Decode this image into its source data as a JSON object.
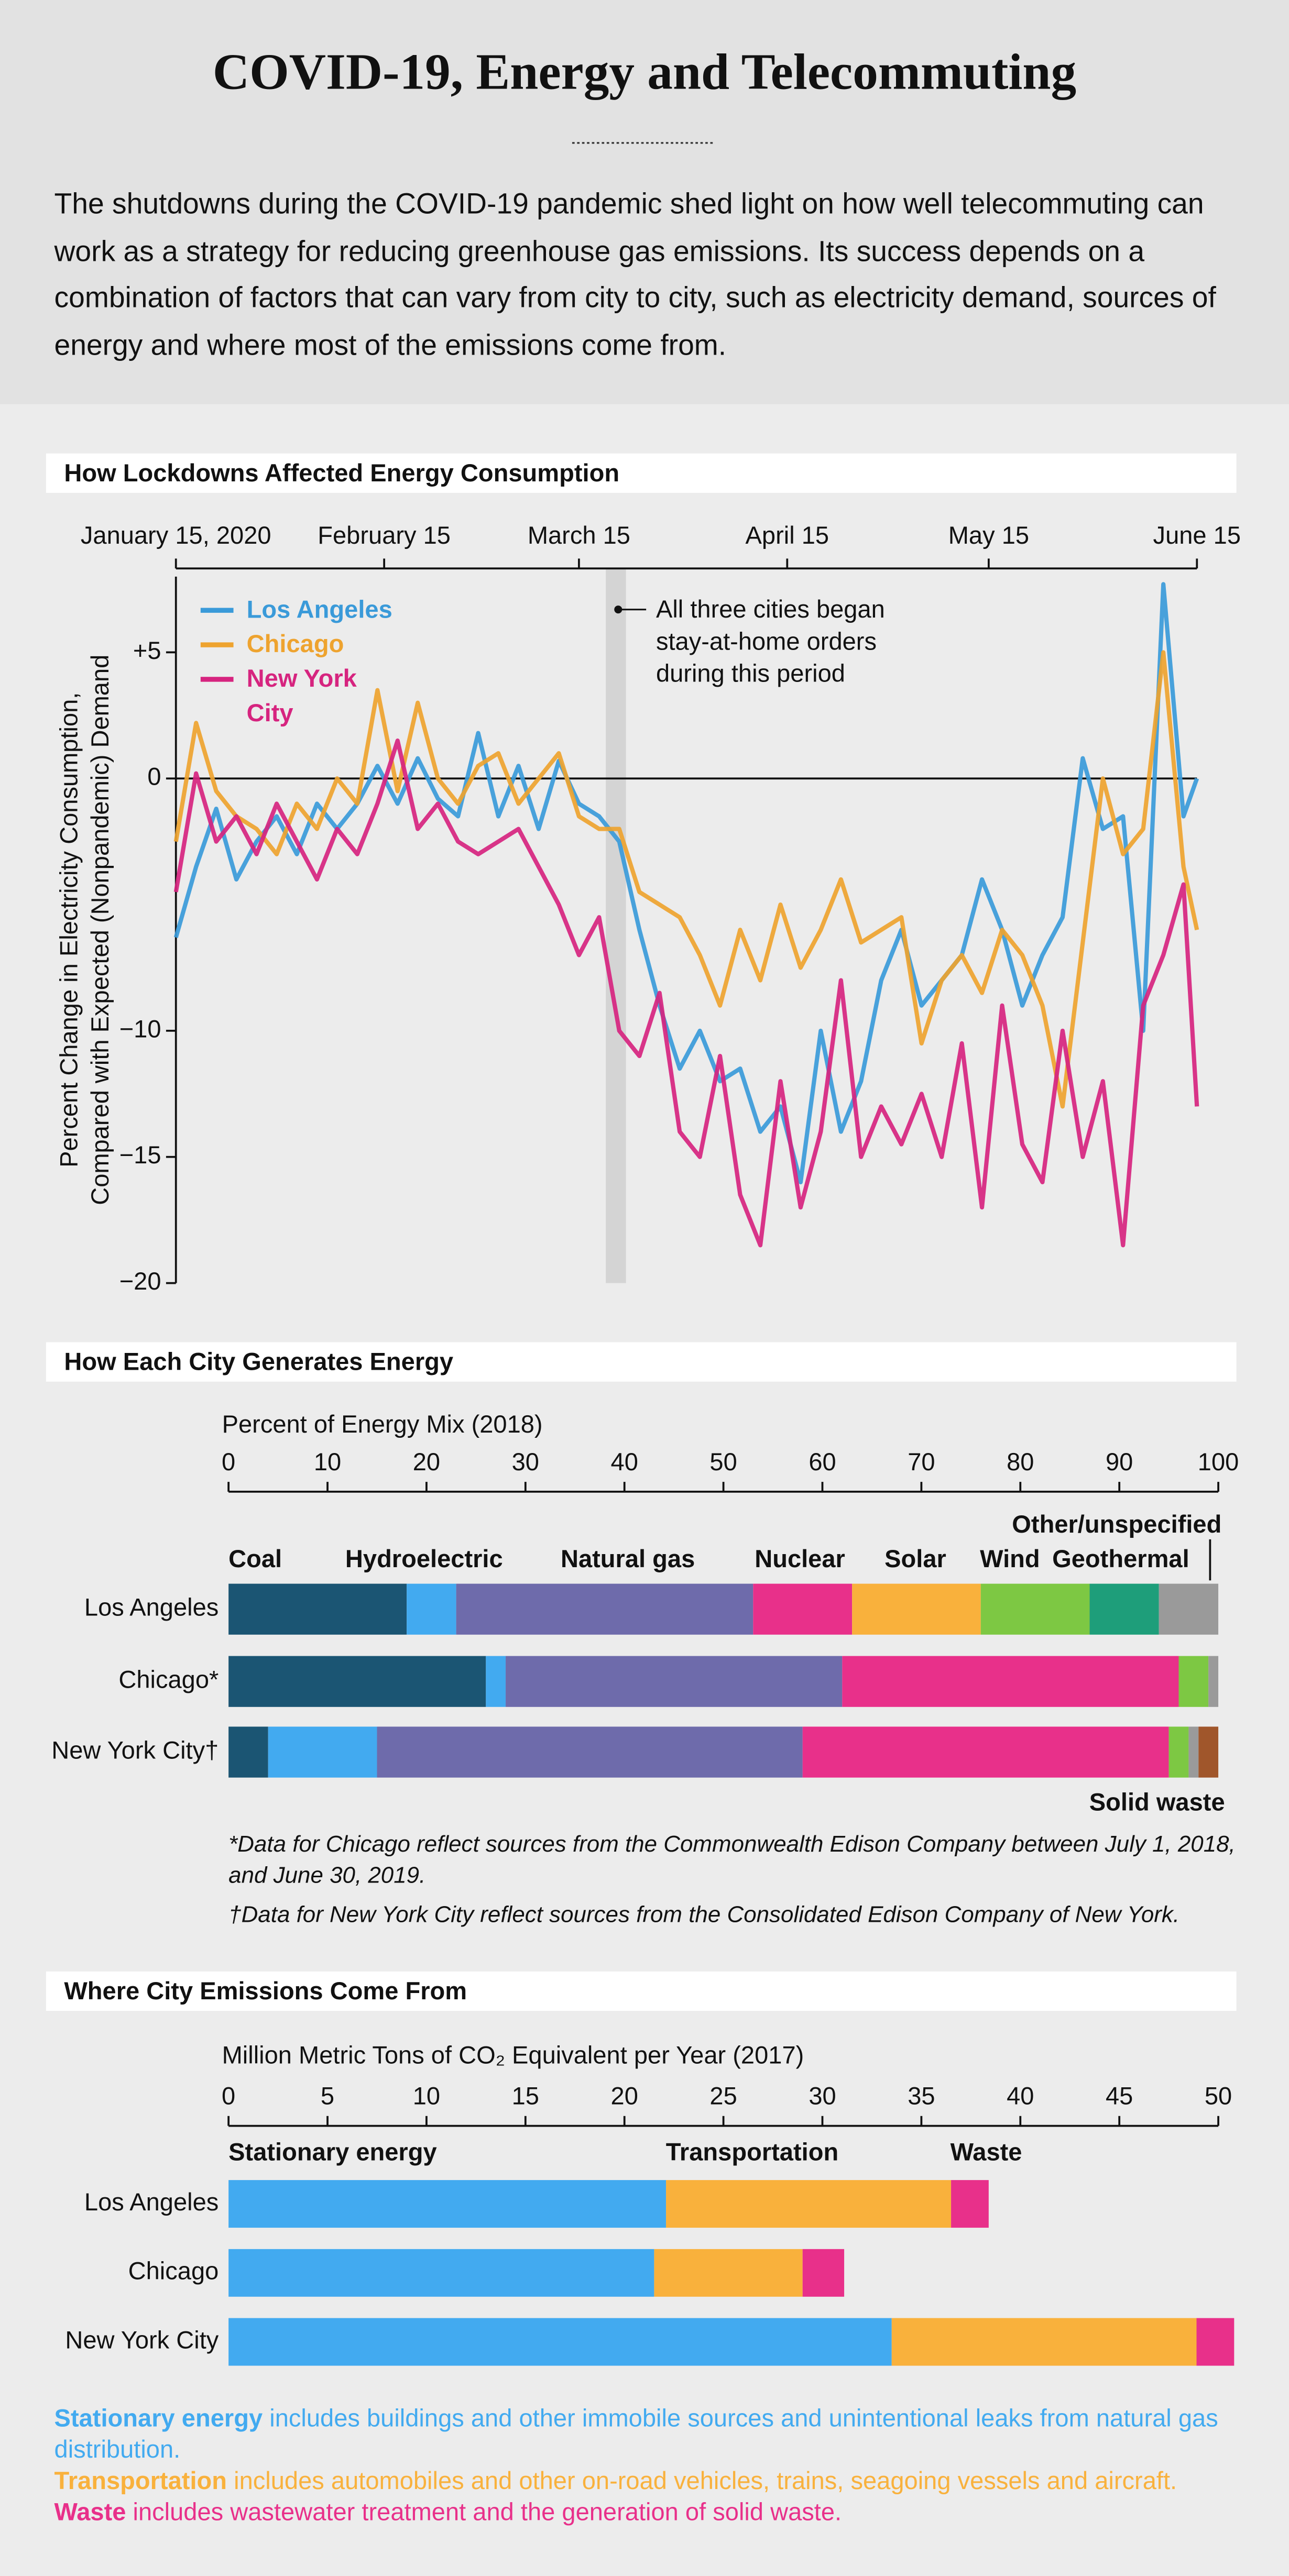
{
  "header": {
    "title": "COVID-19, Energy and Telecommuting",
    "intro": "The shutdowns during the COVID-19 pandemic shed light on how well telecommuting can work as a strategy for reducing greenhouse gas emissions. Its success depends on a combination of factors that can vary from city to city, such as electricity demand, sources of energy and where most of the emissions come from."
  },
  "chart_data": [
    {
      "type": "line",
      "title": "How Lockdowns Affected Energy Consumption",
      "ylabel": [
        "Percent Change in Electricity Consumption,",
        "Compared with Expected (Nonpandemic) Demand"
      ],
      "x": [
        0,
        3,
        6,
        9,
        12,
        15,
        18,
        21,
        24,
        27,
        30,
        33,
        36,
        39,
        42,
        45,
        48,
        51,
        54,
        57,
        60,
        63,
        66,
        69,
        72,
        75,
        78,
        81,
        84,
        87,
        90,
        93,
        96,
        99,
        102,
        105,
        108,
        111,
        114,
        117,
        120,
        123,
        126,
        129,
        132,
        135,
        138,
        141,
        144,
        147,
        150,
        152
      ],
      "xlim": [
        0,
        152
      ],
      "xticks": [
        {
          "value": 0,
          "label": "January 15, 2020"
        },
        {
          "value": 31,
          "label": "February 15"
        },
        {
          "value": 60,
          "label": "March 15"
        },
        {
          "value": 91,
          "label": "April 15"
        },
        {
          "value": 121,
          "label": "May 15"
        },
        {
          "value": 152,
          "label": "June 15"
        }
      ],
      "ylim": [
        -20,
        8
      ],
      "yticks": [
        {
          "value": -20,
          "label": "−20"
        },
        {
          "value": -15,
          "label": "−15"
        },
        {
          "value": -10,
          "label": "−10"
        },
        0,
        {
          "value": 5,
          "label": "+5"
        }
      ],
      "zero_line": true,
      "highlight": [
        64,
        67
      ],
      "annotation": [
        "All three cities began",
        "stay-at-home orders",
        "during this period"
      ],
      "legend": "upper left",
      "series": [
        {
          "name": "Los Angeles",
          "color": "#3a9ad9",
          "values": [
            -6.3,
            -3.5,
            -1.2,
            -4,
            -2.5,
            -1.5,
            -3,
            -1,
            -2,
            -1,
            0.5,
            -1,
            0.8,
            -0.8,
            -1.5,
            1.8,
            -1.5,
            0.5,
            -2,
            0.7,
            -1,
            -1.5,
            -2.5,
            -6,
            -9,
            -11.5,
            -10,
            -12,
            -11.5,
            -14,
            -13,
            -16,
            -10,
            -14,
            -12,
            -8,
            -6,
            -9,
            -8,
            -7,
            -4,
            -6,
            -9,
            -7,
            -5.5,
            0.8,
            -2,
            -1.5,
            -10,
            7.7,
            -1.5,
            0
          ]
        },
        {
          "name": "Chicago",
          "color": "#eea32f",
          "values": [
            -2.5,
            2.2,
            -0.5,
            -1.5,
            -2,
            -3,
            -1,
            -2,
            0,
            -1,
            3.5,
            -0.5,
            3,
            0,
            -1,
            0.5,
            1,
            -1,
            0,
            1,
            -1.5,
            -2,
            -2,
            -4.5,
            -5,
            -5.5,
            -7,
            -9,
            -6,
            -8,
            -5,
            -7.5,
            -6,
            -4,
            -6.5,
            -6,
            -5.5,
            -10.5,
            -8,
            -7,
            -8.5,
            -6,
            -7,
            -9,
            -13,
            -6.5,
            0,
            -3,
            -2,
            5,
            -3.5,
            -6
          ]
        },
        {
          "name": "New York City",
          "color": "#d6247f",
          "values": [
            -4.5,
            0.2,
            -2.5,
            -1.5,
            -3,
            -1,
            -2.5,
            -4,
            -2,
            -3,
            -1,
            1.5,
            -2,
            -1,
            -2.5,
            -3,
            -2.5,
            -2,
            -3.5,
            -5,
            -7,
            -5.5,
            -10,
            -11,
            -8.5,
            -14,
            -15,
            -11,
            -16.5,
            -18.5,
            -12,
            -17,
            -14,
            -8,
            -15,
            -13,
            -14.5,
            -12.5,
            -15,
            -10.5,
            -17,
            -9,
            -14.5,
            -16,
            -10,
            -15,
            -12,
            -18.5,
            -9,
            -7,
            -4.2,
            -13
          ]
        }
      ]
    },
    {
      "type": "bar",
      "orientation": "horizontal",
      "stacked": true,
      "title": "How Each City Generates Energy",
      "xlabel": "Percent of Energy Mix (2018)",
      "xlim": [
        0,
        100
      ],
      "xticks": [
        0,
        10,
        20,
        30,
        40,
        50,
        60,
        70,
        80,
        90,
        100
      ],
      "categories": [
        "Los Angeles",
        "Chicago*",
        "New York City†"
      ],
      "series": [
        {
          "name": "Coal",
          "color": "#1b5573",
          "values": [
            18,
            26,
            4
          ]
        },
        {
          "name": "Hydroelectric",
          "color": "#42aaf0",
          "values": [
            5,
            2,
            11
          ]
        },
        {
          "name": "Natural gas",
          "color": "#6e6bab",
          "values": [
            30,
            34,
            43
          ]
        },
        {
          "name": "Nuclear",
          "color": "#e8308a",
          "values": [
            10,
            34,
            37
          ]
        },
        {
          "name": "Solar",
          "color": "#f9b13c",
          "values": [
            13,
            0,
            0
          ]
        },
        {
          "name": "Wind",
          "color": "#7dc843",
          "values": [
            11,
            3,
            2
          ]
        },
        {
          "name": "Geothermal",
          "color": "#1e9e7a",
          "values": [
            7,
            0,
            0
          ]
        },
        {
          "name": "Other/unspecified",
          "color": "#9a9a9a",
          "values": [
            6,
            1,
            1
          ]
        },
        {
          "name": "Solid waste",
          "color": "#a0562b",
          "values": [
            0,
            0,
            2
          ]
        }
      ],
      "notes": [
        "*Data for Chicago reflect sources from the Commonwealth Edison Company between July 1, 2018, and June 30, 2019.",
        "†Data for New York City reflect sources from the Consolidated Edison Company of New York."
      ]
    },
    {
      "type": "bar",
      "orientation": "horizontal",
      "stacked": true,
      "title": "Where City Emissions Come From",
      "xlabel": "Million Metric Tons of CO₂ Equivalent per Year (2017)",
      "xlim": [
        0,
        50
      ],
      "xticks": [
        0,
        5,
        10,
        15,
        20,
        25,
        30,
        35,
        40,
        45,
        50
      ],
      "categories": [
        "Los Angeles",
        "Chicago",
        "New York City"
      ],
      "series": [
        {
          "name": "Stationary energy",
          "color": "#42aaf0",
          "values": [
            22.1,
            21.5,
            33.5
          ]
        },
        {
          "name": "Transportation",
          "color": "#f9b13c",
          "values": [
            14.4,
            7.5,
            15.4
          ]
        },
        {
          "name": "Waste",
          "color": "#e8308a",
          "values": [
            1.9,
            2.1,
            1.9
          ]
        }
      ],
      "notes": [
        {
          "term": "Stationary energy",
          "text": " includes buildings and other immobile sources and unintentional leaks from natural gas distribution."
        },
        {
          "term": "Transportation",
          "text": " includes automobiles and other on-road vehicles, trains, seagoing vessels and aircraft."
        },
        {
          "term": "Waste",
          "text": " includes wastewater treatment and the generation of solid waste."
        }
      ]
    }
  ]
}
